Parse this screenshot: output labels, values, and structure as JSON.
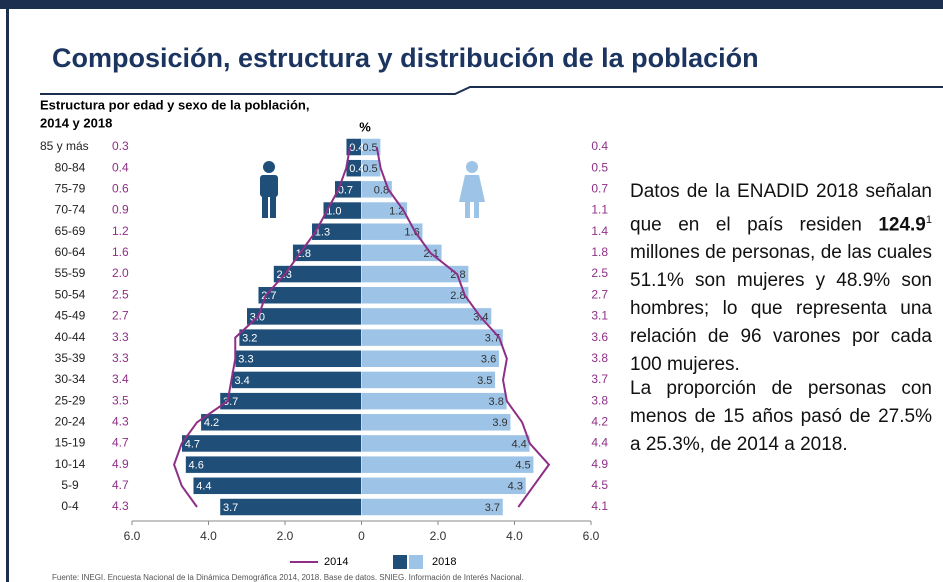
{
  "title": "Composición, estructura y distribución de la población",
  "chart_data": {
    "type": "pyramid",
    "subtitle": [
      "Estructura por edad y sexo de la población,",
      "2014 y 2018"
    ],
    "unit_label": "%",
    "categories": [
      "85 y más",
      "80-84",
      "75-79",
      "70-74",
      "65-69",
      "60-64",
      "55-59",
      "50-54",
      "45-49",
      "40-44",
      "35-39",
      "30-34",
      "25-29",
      "20-24",
      "15-19",
      "10-14",
      "5-9",
      "0-4"
    ],
    "series": [
      {
        "name": "2014",
        "color": "#8e2f86",
        "left_values": [
          0.3,
          0.4,
          0.6,
          0.9,
          1.2,
          1.6,
          2,
          2.5,
          2.7,
          3.3,
          3.3,
          3.4,
          3.5,
          4.3,
          4.7,
          4.9,
          4.7,
          4.3
        ],
        "left_value_labels": [
          "0.3",
          "0.4",
          "0.6",
          "0.9",
          "1.2",
          "1.6",
          "2.0",
          "2.5",
          "2.7",
          "3.3",
          "3.3",
          "3.4",
          "3.5",
          "4.3",
          "4.7",
          "4.9",
          "4.7",
          "4.3"
        ],
        "right_values": [
          0.4,
          0.5,
          0.7,
          1.1,
          1.4,
          1.8,
          2.5,
          2.7,
          3.1,
          3.6,
          3.8,
          3.7,
          3.8,
          4.2,
          4.4,
          4.9,
          4.5,
          4.1
        ],
        "right_value_labels": [
          "0.4",
          "0.5",
          "0.7",
          "1.1",
          "1.4",
          "1.8",
          "2.5",
          "2.7",
          "3.1",
          "3.6",
          "3.8",
          "3.7",
          "3.8",
          "4.2",
          "4.4",
          "4.9",
          "4.5",
          "4.1"
        ]
      },
      {
        "name": "2018",
        "colors": [
          "#1f4e79",
          "#9dc3e6"
        ],
        "left_values": [
          0.4,
          0.4,
          0.7,
          1,
          1.3,
          1.8,
          2.3,
          2.7,
          3,
          3.2,
          3.3,
          3.4,
          3.7,
          4.2,
          4.7,
          4.6,
          4.4,
          3.7
        ],
        "left_value_labels": [
          "0.4",
          "0.4",
          "0.7",
          "1.0",
          "1.3",
          "1.8",
          "2.3",
          "2.7",
          "3.0",
          "3.2",
          "3.3",
          "3.4",
          "3.7",
          "4.2",
          "4.7",
          "4.6",
          "4.4",
          "3.7"
        ],
        "right_values": [
          0.5,
          0.5,
          0.8,
          1.2,
          1.6,
          2.1,
          2.8,
          2.8,
          3.4,
          3.7,
          3.6,
          3.5,
          3.8,
          3.9,
          4.4,
          4.5,
          4.3,
          3.7
        ],
        "right_value_labels": [
          "0.5",
          "0.5",
          "0.8",
          "1.2",
          "1.6",
          "2.1",
          "2.8",
          "2.8",
          "3.4",
          "3.7",
          "3.6",
          "3.5",
          "3.8",
          "3.9",
          "4.4",
          "4.5",
          "4.3",
          "3.7"
        ]
      }
    ],
    "xlim": [
      -6,
      6
    ],
    "xticks": [
      {
        "value": -6,
        "label": "6.0"
      },
      {
        "value": -4,
        "label": "4.0"
      },
      {
        "value": -2,
        "label": "2.0"
      },
      0,
      {
        "value": 2,
        "label": "2.0"
      },
      {
        "value": 4,
        "label": "4.0"
      },
      {
        "value": 6,
        "label": "6.0"
      }
    ],
    "legend": "bottom"
  },
  "text": {
    "p1_before": "Datos de la ENADID 2018 señalan que en el país residen ",
    "p1_bold": "124.9",
    "p1_sup": "1",
    "p1_after": " millones de personas, de las cuales 51.1% son mujeres y 48.9% son hombres; lo que representa una relación de 96 varones por cada 100 mujeres.",
    "p2": "La proporción de personas con menos de 15 años pasó de 27.5% a 25.3%, de 2014 a 2018."
  },
  "source": "Fuente:  INEGI. Encuesta Nacional de la Dinámica Demográfica 2014, 2018. Base de datos. SNIEG. Información de Interés Nacional."
}
